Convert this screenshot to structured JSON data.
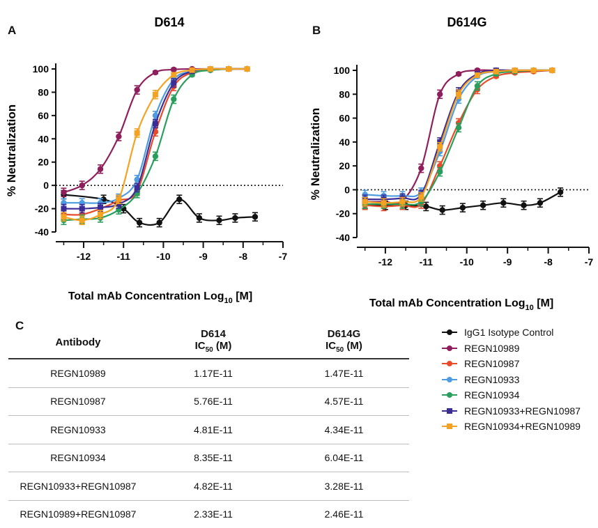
{
  "panels": {
    "A": {
      "letter": "A",
      "title": "D614"
    },
    "B": {
      "letter": "B",
      "title": "D614G"
    },
    "C": {
      "letter": "C"
    }
  },
  "chart_data": [
    {
      "panel": "A",
      "type": "line",
      "title": "D614",
      "xlabel": "Total mAb Concentration Log10 [M]",
      "ylabel": "% Neutralization",
      "xlim": [
        -12.7,
        -7
      ],
      "ylim": [
        -40,
        100
      ],
      "xticks": [
        -12,
        -11,
        -10,
        -9,
        -8,
        -7
      ],
      "yticks": [
        -40,
        -20,
        0,
        20,
        40,
        60,
        80,
        100
      ],
      "reference_line": 0,
      "x": [
        -12.5,
        -12.04,
        -11.58,
        -11.12,
        -10.66,
        -10.2,
        -9.74,
        -9.28,
        -8.82,
        -8.36,
        -7.9
      ],
      "series": [
        {
          "name": "IgG1 Isotype Control",
          "color": "#111111",
          "marker": "circle",
          "x": [
            -12.5,
            -11.5,
            -11.0,
            -10.6,
            -10.1,
            -9.6,
            -9.1,
            -8.6,
            -8.2,
            -7.7
          ],
          "y": [
            -8,
            -12,
            -20,
            -32,
            -32,
            -12,
            -28,
            -30,
            -28,
            -27
          ]
        },
        {
          "name": "REGN10989",
          "color": "#8e1f5c",
          "marker": "circle",
          "y": [
            -6,
            0,
            14,
            42,
            82,
            97,
            99.5,
            100,
            100,
            100,
            100
          ]
        },
        {
          "name": "REGN10987",
          "color": "#e94b2a",
          "marker": "circle",
          "y": [
            -25,
            -25,
            -20,
            -13,
            -5,
            46,
            85,
            97,
            99,
            100,
            100
          ]
        },
        {
          "name": "REGN10933",
          "color": "#4d9be0",
          "marker": "circle",
          "y": [
            -15,
            -15,
            -15,
            -11,
            5,
            60,
            91,
            98,
            100,
            100,
            100
          ]
        },
        {
          "name": "REGN10934",
          "color": "#2a9e5c",
          "marker": "circle",
          "y": [
            -30,
            -29,
            -28,
            -21,
            -7,
            25,
            74,
            95,
            99,
            100,
            100
          ]
        },
        {
          "name": "REGN10933+REGN10987",
          "color": "#3b2c96",
          "marker": "square",
          "y": [
            -20,
            -20,
            -19,
            -16,
            -2,
            53,
            88,
            98,
            100,
            100,
            100
          ]
        },
        {
          "name": "REGN10934+REGN10989",
          "color": "#f4a221",
          "marker": "square",
          "y": [
            -27,
            -30,
            -25,
            -12,
            45,
            78,
            95,
            99,
            100,
            100,
            100
          ]
        }
      ]
    },
    {
      "panel": "B",
      "type": "line",
      "title": "D614G",
      "xlabel": "Total mAb Concentration Log10 [M]",
      "ylabel": "% Neutralization",
      "xlim": [
        -12.7,
        -7
      ],
      "ylim": [
        -40,
        100
      ],
      "xticks": [
        -12,
        -11,
        -10,
        -9,
        -8,
        -7
      ],
      "yticks": [
        -40,
        -20,
        0,
        20,
        40,
        60,
        80,
        100
      ],
      "reference_line": 0,
      "x": [
        -12.5,
        -12.04,
        -11.58,
        -11.12,
        -10.66,
        -10.2,
        -9.74,
        -9.28,
        -8.82,
        -8.36,
        -7.9
      ],
      "series": [
        {
          "name": "IgG1 Isotype Control",
          "color": "#111111",
          "marker": "circle",
          "x": [
            -12.5,
            -12.0,
            -11.5,
            -11.0,
            -10.6,
            -10.1,
            -9.6,
            -9.1,
            -8.6,
            -8.2,
            -7.7
          ],
          "y": [
            -12,
            -13,
            -13,
            -14,
            -17,
            -15,
            -13,
            -11,
            -13,
            -11,
            -2
          ]
        },
        {
          "name": "REGN10989",
          "color": "#8e1f5c",
          "marker": "circle",
          "y": [
            -10,
            -10,
            -9,
            18,
            80,
            97,
            100,
            100,
            100,
            100,
            100
          ]
        },
        {
          "name": "REGN10987",
          "color": "#e94b2a",
          "marker": "circle",
          "y": [
            -13,
            -14,
            -13,
            -12,
            20,
            56,
            84,
            95,
            98,
            99,
            100
          ]
        },
        {
          "name": "REGN10933",
          "color": "#4d9be0",
          "marker": "circle",
          "y": [
            -4,
            -5,
            -5,
            -2,
            32,
            76,
            95,
            99,
            100,
            100,
            100
          ]
        },
        {
          "name": "REGN10934",
          "color": "#2a9e5c",
          "marker": "circle",
          "y": [
            -12,
            -12,
            -12,
            -10,
            15,
            52,
            87,
            97,
            99,
            100,
            100
          ]
        },
        {
          "name": "REGN10933+REGN10987",
          "color": "#3b2c96",
          "marker": "square",
          "y": [
            -8,
            -8,
            -7,
            -4,
            40,
            82,
            97,
            100,
            100,
            100,
            100
          ]
        },
        {
          "name": "REGN10934+REGN10989",
          "color": "#f4a221",
          "marker": "square",
          "y": [
            -10,
            -11,
            -10,
            -6,
            36,
            80,
            96,
            99,
            100,
            100,
            100
          ]
        }
      ]
    }
  ],
  "axis_text": {
    "ylabel": "% Neutralization",
    "xlabel_main": "Total mAb Concentration Log",
    "xlabel_sub": "10",
    "xlabel_tail": " [M]"
  },
  "table": {
    "headers": {
      "antibody": "Antibody",
      "d614_line1": "D614",
      "d614_line2": "IC",
      "d614_sub": "50",
      "d614_unit": " (M)",
      "d614g_line1": "D614G",
      "d614g_line2": "IC",
      "d614g_sub": "50",
      "d614g_unit": " (M)"
    },
    "rows": [
      {
        "antibody": "REGN10989",
        "d614": "1.17E-11",
        "d614g": "1.47E-11"
      },
      {
        "antibody": "REGN10987",
        "d614": "5.76E-11",
        "d614g": "4.57E-11"
      },
      {
        "antibody": "REGN10933",
        "d614": "4.81E-11",
        "d614g": "4.34E-11"
      },
      {
        "antibody": "REGN10934",
        "d614": "8.35E-11",
        "d614g": "6.04E-11"
      },
      {
        "antibody": "REGN10933+REGN10987",
        "d614": "4.82E-11",
        "d614g": "3.28E-11"
      },
      {
        "antibody": "REGN10989+REGN10987",
        "d614": "2.33E-11",
        "d614g": "2.46E-11"
      }
    ]
  }
}
